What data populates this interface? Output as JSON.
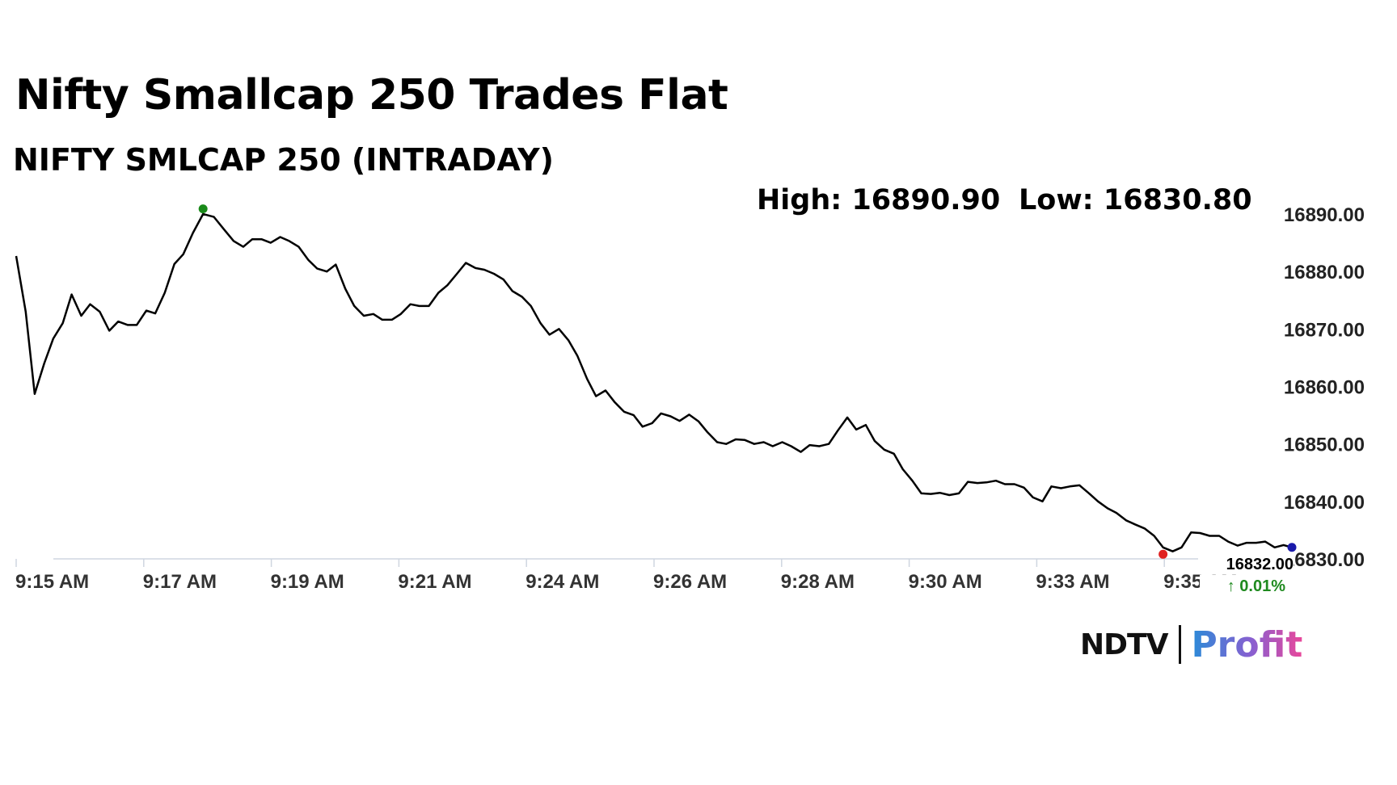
{
  "header": {
    "title": "Nifty Smallcap 250 Trades Flat",
    "subtitle": "NIFTY SMLCAP 250 (INTRADAY)",
    "high_text": "High: 16890.90",
    "low_text": "Low: 16830.80"
  },
  "branding": {
    "ndtv": "NDTV",
    "profit": "Profit",
    "ndtv_dot_color": "#e02020"
  },
  "chart_data": {
    "type": "line",
    "title": "NIFTY SMLCAP 250 (INTRADAY)",
    "high": 16890.9,
    "low": 16830.8,
    "last_value_label": "16832.00",
    "change_label": "↑ 0.01%",
    "ylim": [
      16830,
      16890
    ],
    "y_ticks": [
      "16830.00",
      "16840.00",
      "16850.00",
      "16860.00",
      "16870.00",
      "16880.00",
      "16890.00"
    ],
    "x_ticks": [
      "9:15 AM",
      "9:17 AM",
      "9:19 AM",
      "9:21 AM",
      "9:24 AM",
      "9:26 AM",
      "9:28 AM",
      "9:30 AM",
      "9:33 AM",
      "9:35 AM"
    ],
    "x_range": [
      0,
      20
    ],
    "grid": false,
    "colors": {
      "line": "#000000",
      "high_marker": "#1a8a1a",
      "low_marker": "#e02020",
      "last_marker": "#1a1aaa",
      "change_up": "#1f8a1f"
    },
    "series": [
      {
        "points": [
          [
            0.0,
            16882.7
          ],
          [
            0.15,
            16873.0
          ],
          [
            0.29,
            16858.7
          ],
          [
            0.44,
            16864.0
          ],
          [
            0.58,
            16868.3
          ],
          [
            0.73,
            16871.0
          ],
          [
            0.87,
            16876.0
          ],
          [
            1.02,
            16872.3
          ],
          [
            1.16,
            16874.3
          ],
          [
            1.31,
            16873.0
          ],
          [
            1.46,
            16869.7
          ],
          [
            1.6,
            16871.3
          ],
          [
            1.75,
            16870.7
          ],
          [
            1.89,
            16870.7
          ],
          [
            2.04,
            16873.2
          ],
          [
            2.18,
            16872.7
          ],
          [
            2.33,
            16876.3
          ],
          [
            2.48,
            16881.3
          ],
          [
            2.62,
            16883.0
          ],
          [
            2.77,
            16886.7
          ],
          [
            2.93,
            16890.0
          ],
          [
            3.1,
            16889.5
          ],
          [
            3.26,
            16887.3
          ],
          [
            3.41,
            16885.3
          ],
          [
            3.56,
            16884.3
          ],
          [
            3.7,
            16885.6
          ],
          [
            3.85,
            16885.6
          ],
          [
            3.99,
            16885.0
          ],
          [
            4.14,
            16886.0
          ],
          [
            4.28,
            16885.3
          ],
          [
            4.43,
            16884.3
          ],
          [
            4.58,
            16882.0
          ],
          [
            4.72,
            16880.5
          ],
          [
            4.87,
            16880.0
          ],
          [
            5.01,
            16881.2
          ],
          [
            5.16,
            16877.0
          ],
          [
            5.3,
            16874.0
          ],
          [
            5.45,
            16872.3
          ],
          [
            5.6,
            16872.6
          ],
          [
            5.74,
            16871.6
          ],
          [
            5.89,
            16871.6
          ],
          [
            6.03,
            16872.6
          ],
          [
            6.18,
            16874.3
          ],
          [
            6.32,
            16874.0
          ],
          [
            6.47,
            16874.0
          ],
          [
            6.62,
            16876.3
          ],
          [
            6.76,
            16877.6
          ],
          [
            6.91,
            16879.6
          ],
          [
            7.05,
            16881.5
          ],
          [
            7.2,
            16880.6
          ],
          [
            7.34,
            16880.3
          ],
          [
            7.49,
            16879.6
          ],
          [
            7.64,
            16878.6
          ],
          [
            7.78,
            16876.6
          ],
          [
            7.93,
            16875.6
          ],
          [
            8.07,
            16874.0
          ],
          [
            8.22,
            16871.0
          ],
          [
            8.36,
            16869.0
          ],
          [
            8.51,
            16870.0
          ],
          [
            8.66,
            16868.0
          ],
          [
            8.8,
            16865.3
          ],
          [
            8.95,
            16861.3
          ],
          [
            9.09,
            16858.3
          ],
          [
            9.24,
            16859.3
          ],
          [
            9.38,
            16857.3
          ],
          [
            9.53,
            16855.6
          ],
          [
            9.68,
            16855.0
          ],
          [
            9.82,
            16853.0
          ],
          [
            9.97,
            16853.6
          ],
          [
            10.11,
            16855.3
          ],
          [
            10.26,
            16854.8
          ],
          [
            10.4,
            16854.0
          ],
          [
            10.55,
            16855.1
          ],
          [
            10.7,
            16853.9
          ],
          [
            10.84,
            16852.0
          ],
          [
            10.99,
            16850.3
          ],
          [
            11.13,
            16850.0
          ],
          [
            11.28,
            16850.8
          ],
          [
            11.42,
            16850.7
          ],
          [
            11.57,
            16850.0
          ],
          [
            11.72,
            16850.3
          ],
          [
            11.86,
            16849.6
          ],
          [
            12.01,
            16850.3
          ],
          [
            12.15,
            16849.6
          ],
          [
            12.3,
            16848.6
          ],
          [
            12.44,
            16849.8
          ],
          [
            12.59,
            16849.6
          ],
          [
            12.74,
            16850.0
          ],
          [
            12.88,
            16852.3
          ],
          [
            13.03,
            16854.6
          ],
          [
            13.17,
            16852.5
          ],
          [
            13.32,
            16853.3
          ],
          [
            13.46,
            16850.5
          ],
          [
            13.61,
            16849.0
          ],
          [
            13.76,
            16848.3
          ],
          [
            13.9,
            16845.6
          ],
          [
            14.05,
            16843.6
          ],
          [
            14.19,
            16841.4
          ],
          [
            14.34,
            16841.3
          ],
          [
            14.48,
            16841.5
          ],
          [
            14.63,
            16841.1
          ],
          [
            14.78,
            16841.4
          ],
          [
            14.92,
            16843.4
          ],
          [
            15.07,
            16843.2
          ],
          [
            15.21,
            16843.3
          ],
          [
            15.36,
            16843.6
          ],
          [
            15.5,
            16843.0
          ],
          [
            15.65,
            16843.0
          ],
          [
            15.8,
            16842.4
          ],
          [
            15.94,
            16840.7
          ],
          [
            16.09,
            16840.0
          ],
          [
            16.23,
            16842.6
          ],
          [
            16.38,
            16842.3
          ],
          [
            16.52,
            16842.6
          ],
          [
            16.67,
            16842.8
          ],
          [
            16.82,
            16841.4
          ],
          [
            16.96,
            16840.0
          ],
          [
            17.11,
            16838.8
          ],
          [
            17.25,
            16838.0
          ],
          [
            17.4,
            16836.7
          ],
          [
            17.54,
            16836.0
          ],
          [
            17.69,
            16835.3
          ],
          [
            17.84,
            16834.0
          ],
          [
            17.98,
            16832.0
          ],
          [
            18.13,
            16831.3
          ],
          [
            18.27,
            16832.0
          ],
          [
            18.42,
            16834.6
          ],
          [
            18.56,
            16834.5
          ],
          [
            18.71,
            16834.0
          ],
          [
            18.86,
            16834.0
          ],
          [
            19.0,
            16833.0
          ],
          [
            19.15,
            16832.3
          ],
          [
            19.29,
            16832.8
          ],
          [
            19.44,
            16832.8
          ],
          [
            19.58,
            16833.0
          ],
          [
            19.73,
            16832.0
          ],
          [
            19.87,
            16832.4
          ],
          [
            20.0,
            16832.0
          ]
        ],
        "high_point": [
          2.93,
          16890.9
        ],
        "low_point": [
          17.98,
          16830.8
        ],
        "last_point": [
          20.0,
          16832.0
        ]
      }
    ]
  }
}
